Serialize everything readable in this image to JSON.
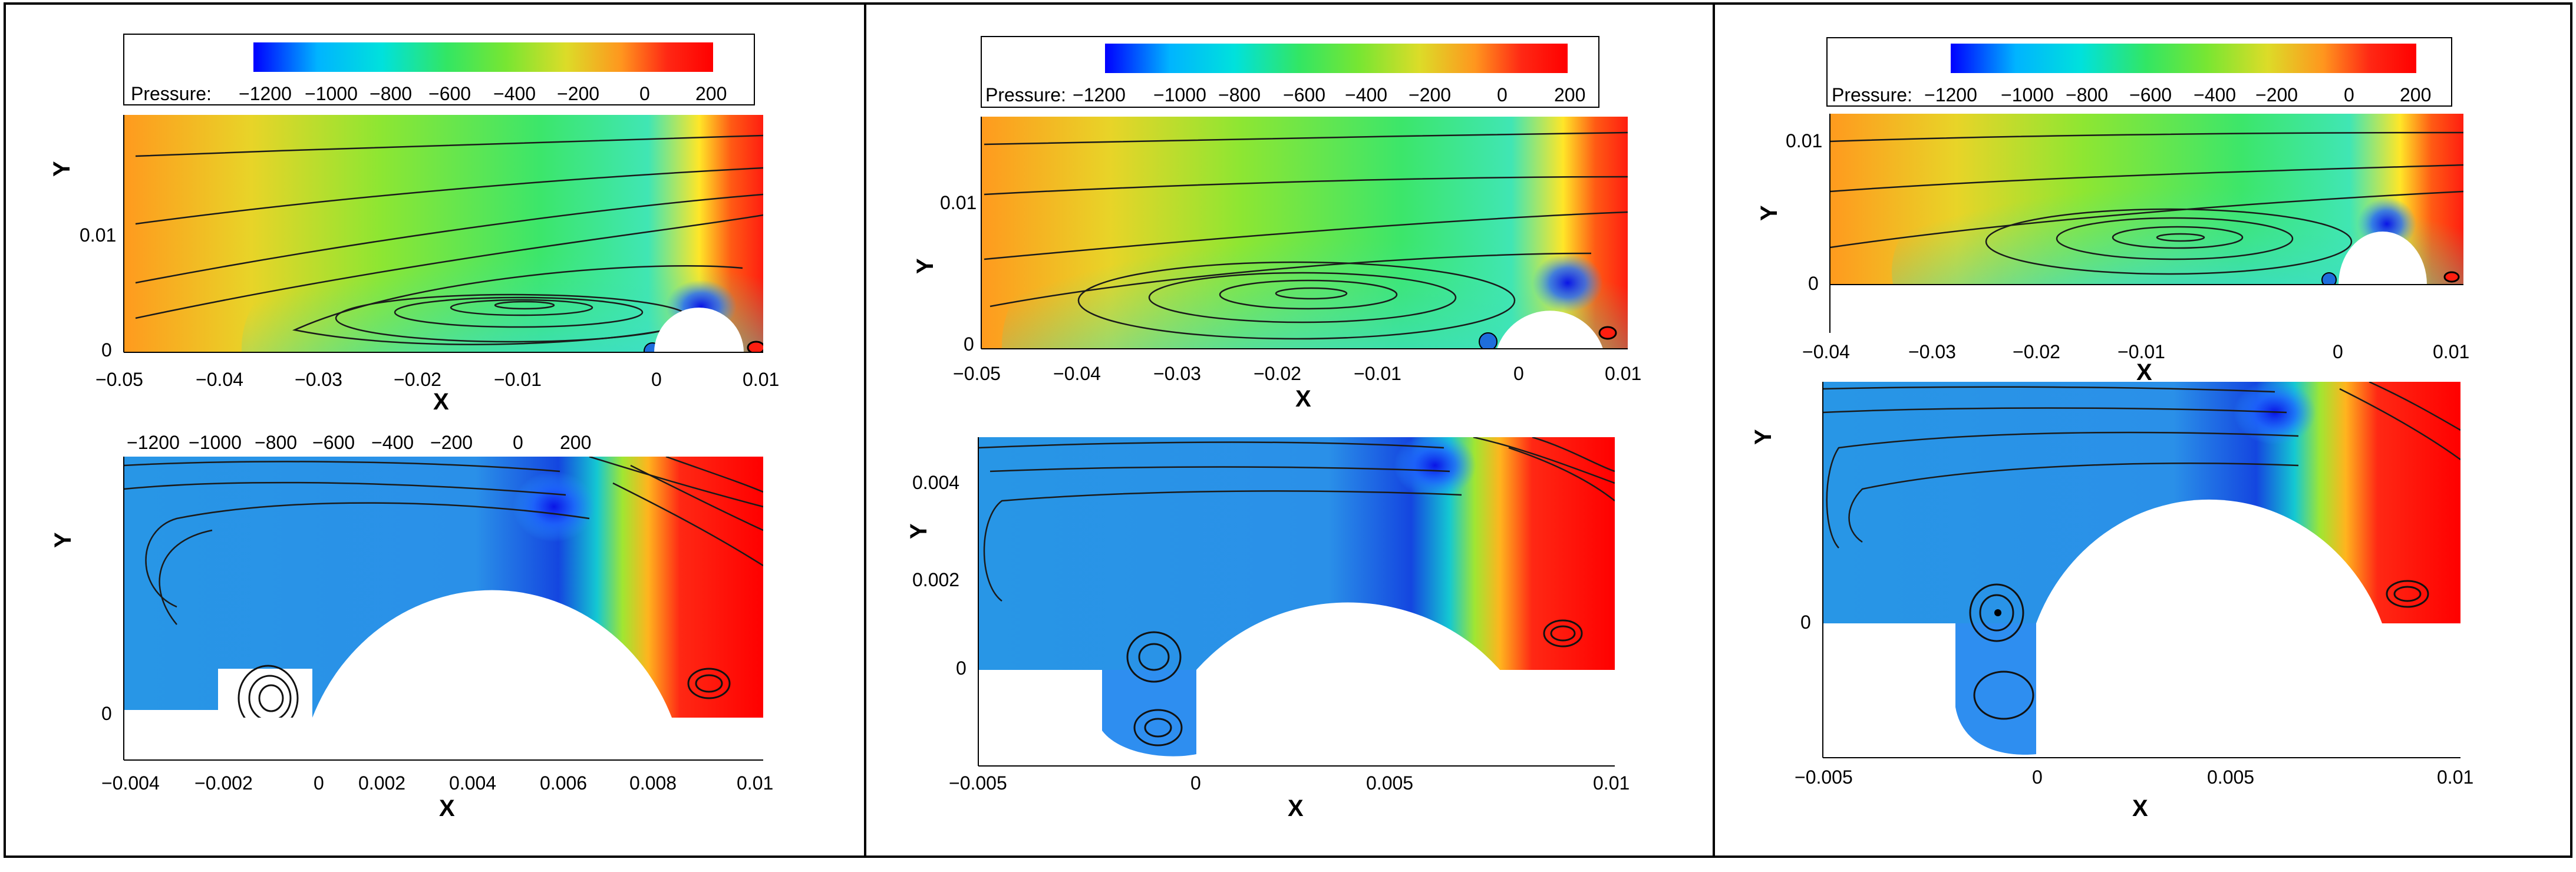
{
  "colorbar": {
    "label": "Pressure:",
    "ticks": [
      "−1200",
      "−1000",
      "−800",
      "−600",
      "−400",
      "−200",
      "0",
      "200"
    ],
    "range": [
      -1200,
      200
    ],
    "stops": [
      "#0000ff",
      "#00b4ff",
      "#00e1dc",
      "#32e664",
      "#78e632",
      "#dcdc28",
      "#ff961e",
      "#ff2814",
      "#ff0000"
    ]
  },
  "colorbar_bottom_left_ticks": [
    "−1200",
    "−1000",
    "−800",
    "−600",
    "−400",
    "−200",
    "0",
    "200"
  ],
  "chart_data": [
    {
      "type": "heatmap",
      "panel": "left-top",
      "xlabel": "X",
      "ylabel": "Y",
      "xticks": [
        "−0.05",
        "−0.04",
        "−0.03",
        "−0.02",
        "−0.01",
        "0",
        "0.01"
      ],
      "yticks": [
        "0",
        "0.01"
      ],
      "xlim": [
        -0.05,
        0.01
      ],
      "ylim": [
        0,
        0.018
      ],
      "colorbar": "Pressure"
    },
    {
      "type": "heatmap",
      "panel": "left-bottom",
      "xlabel": "X",
      "ylabel": "Y",
      "xticks": [
        "−0.004",
        "−0.002",
        "0",
        "0.002",
        "0.004",
        "0.006",
        "0.008",
        "0.01"
      ],
      "yticks": [
        "0"
      ],
      "xlim": [
        -0.004,
        0.01
      ],
      "ylim": [
        0,
        0.0055
      ],
      "colorbar": "Pressure"
    },
    {
      "type": "heatmap",
      "panel": "middle-top",
      "xlabel": "X",
      "ylabel": "Y",
      "xticks": [
        "−0.05",
        "−0.04",
        "−0.03",
        "−0.02",
        "−0.01",
        "0",
        "0.01"
      ],
      "yticks": [
        "0",
        "0.01"
      ],
      "xlim": [
        -0.05,
        0.01
      ],
      "ylim": [
        0,
        0.0155
      ],
      "colorbar": "Pressure"
    },
    {
      "type": "heatmap",
      "panel": "middle-bottom",
      "xlabel": "X",
      "ylabel": "Y",
      "xticks": [
        "−0.005",
        "0",
        "0.005",
        "0.01"
      ],
      "yticks": [
        "0",
        "0.002",
        "0.004"
      ],
      "xlim": [
        -0.005,
        0.01
      ],
      "ylim": [
        -0.0015,
        0.0048
      ],
      "colorbar": "Pressure"
    },
    {
      "type": "heatmap",
      "panel": "right-top",
      "xlabel": "X",
      "ylabel": "Y",
      "xticks": [
        "−0.04",
        "−0.03",
        "−0.02",
        "−0.01",
        "0",
        "0.01"
      ],
      "yticks": [
        "0",
        "0.01"
      ],
      "xlim": [
        -0.04,
        0.01
      ],
      "ylim": [
        0,
        0.012
      ],
      "colorbar": "Pressure"
    },
    {
      "type": "heatmap",
      "panel": "right-bottom",
      "xlabel": "X",
      "ylabel": "Y",
      "xticks": [
        "−0.005",
        "0",
        "0.005",
        "0.01"
      ],
      "yticks": [
        "0"
      ],
      "xlim": [
        -0.005,
        0.01
      ],
      "ylim": [
        -0.0025,
        0.0045
      ],
      "colorbar": "Pressure"
    }
  ]
}
